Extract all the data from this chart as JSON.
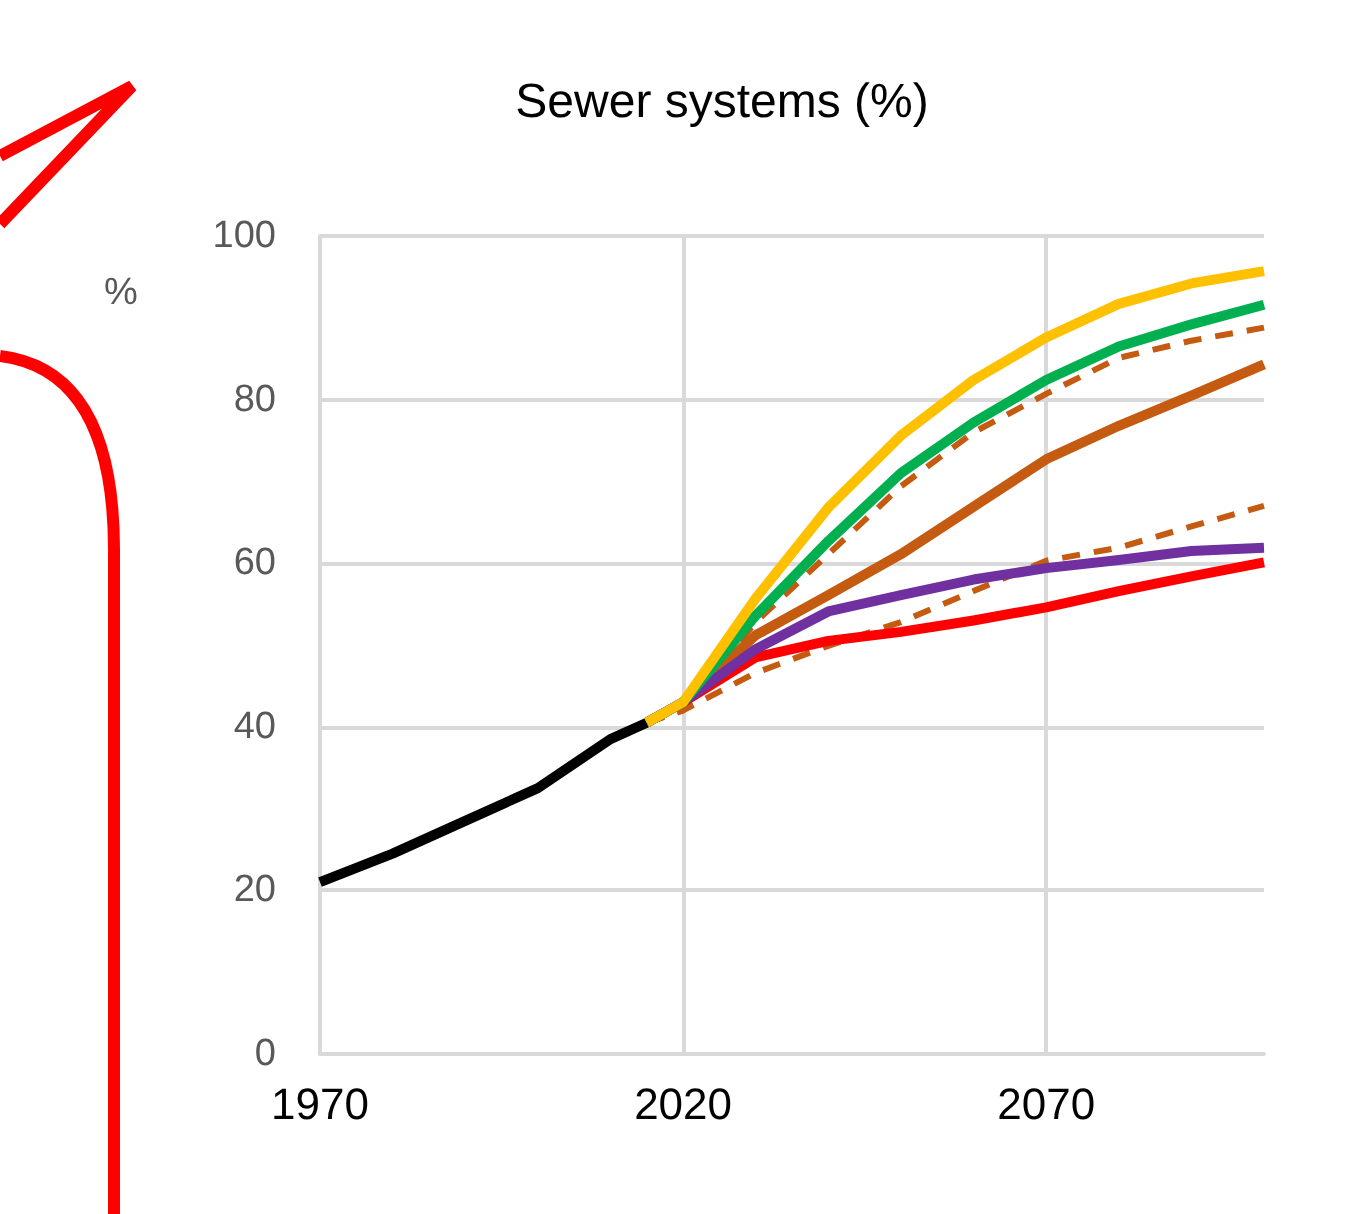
{
  "chart_data": {
    "type": "line",
    "title": "Sewer systems (%)",
    "ylabel": "%",
    "xlim": [
      1970,
      2100
    ],
    "xticks": [
      1970,
      2020,
      2070
    ],
    "ylim": [
      0,
      100
    ],
    "yticks": [
      0,
      20,
      40,
      60,
      80,
      100
    ],
    "grid": true,
    "marker": "none",
    "series": [
      {
        "color": "#000000",
        "line_style": "solid",
        "x": [
          1970,
          1980,
          1990,
          2000,
          2010,
          2015
        ],
        "values": [
          21,
          24.5,
          28.5,
          32.5,
          38.5,
          40.5
        ]
      },
      {
        "color": "#c55a11",
        "line_style": "dashed",
        "x": [
          2015,
          2020,
          2030,
          2040,
          2050,
          2060,
          2070,
          2080,
          2090,
          2100
        ],
        "values": [
          40.5,
          42,
          52.8,
          61.1,
          69.4,
          76,
          80.7,
          85.1,
          87.2,
          88.8
        ]
      },
      {
        "color": "#c55a11",
        "line_style": "dashed",
        "x": [
          2015,
          2020,
          2030,
          2040,
          2050,
          2060,
          2070,
          2080,
          2090,
          2100
        ],
        "values": [
          40.5,
          42,
          46.6,
          49.9,
          52.8,
          56.6,
          60.3,
          61.9,
          64.5,
          67
        ]
      },
      {
        "color": "#c55a11",
        "line_style": "solid",
        "x": [
          2015,
          2020,
          2030,
          2040,
          2050,
          2060,
          2070,
          2080,
          2090,
          2100
        ],
        "values": [
          40.5,
          43,
          51.2,
          56.1,
          61.1,
          66.9,
          72.7,
          76.8,
          80.5,
          84.3
        ]
      },
      {
        "color": "#ff0000",
        "line_style": "solid",
        "x": [
          2015,
          2020,
          2030,
          2040,
          2050,
          2060,
          2070,
          2080,
          2090,
          2100
        ],
        "values": [
          40.5,
          43,
          48.5,
          50.5,
          51.6,
          53,
          54.6,
          56.6,
          58.4,
          60.1
        ]
      },
      {
        "color": "#7030a0",
        "line_style": "solid",
        "x": [
          2015,
          2020,
          2030,
          2040,
          2050,
          2060,
          2070,
          2080,
          2090,
          2100
        ],
        "values": [
          40.5,
          43,
          49.5,
          54.1,
          56.1,
          58,
          59.4,
          60.4,
          61.5,
          61.9
        ]
      },
      {
        "color": "#00b050",
        "line_style": "solid",
        "x": [
          2015,
          2020,
          2030,
          2040,
          2050,
          2060,
          2070,
          2080,
          2090,
          2100
        ],
        "values": [
          40.5,
          43,
          53.6,
          62.7,
          71,
          77.2,
          82.4,
          86.5,
          89.2,
          91.6
        ]
      },
      {
        "color": "#ffc000",
        "line_style": "solid",
        "x": [
          2015,
          2020,
          2030,
          2040,
          2050,
          2060,
          2070,
          2080,
          2090,
          2100
        ],
        "values": [
          40.5,
          43,
          55.7,
          66.8,
          75.6,
          82.4,
          87.6,
          91.7,
          94.2,
          95.7
        ]
      }
    ]
  }
}
